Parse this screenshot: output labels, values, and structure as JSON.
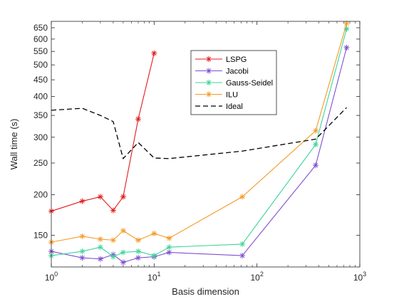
{
  "chart_data": {
    "type": "line",
    "xlabel": "Basis dimension",
    "ylabel": "Wall time (s)",
    "x_scale": "log",
    "y_scale": "log",
    "xlim": [
      1,
      1000
    ],
    "ylim": [
      120,
      680
    ],
    "x_ticks": [
      {
        "value": 1,
        "base": "10",
        "exp": "0"
      },
      {
        "value": 10,
        "base": "10",
        "exp": "1"
      },
      {
        "value": 100,
        "base": "10",
        "exp": "2"
      },
      {
        "value": 1000,
        "base": "10",
        "exp": "3"
      }
    ],
    "y_ticks": [
      {
        "value": 150,
        "label": "150"
      },
      {
        "value": 200,
        "label": "200"
      },
      {
        "value": 250,
        "label": "250"
      },
      {
        "value": 300,
        "label": "300"
      },
      {
        "value": 350,
        "label": "350"
      },
      {
        "value": 400,
        "label": "400"
      },
      {
        "value": 450,
        "label": "450"
      },
      {
        "value": 500,
        "label": "500"
      },
      {
        "value": 550,
        "label": "550"
      },
      {
        "value": 600,
        "label": "600"
      },
      {
        "value": 650,
        "label": "650"
      }
    ],
    "grid": false,
    "legend_position": "top-center",
    "series": [
      {
        "name": "LSPG",
        "color": "#e41a1c",
        "dashed": false,
        "marker": "star",
        "x": [
          1,
          2,
          3,
          4,
          5,
          7,
          10
        ],
        "y": [
          178,
          191,
          197,
          179,
          197,
          341,
          543
        ]
      },
      {
        "name": "Jacobi",
        "color": "#7e4fd1",
        "dashed": false,
        "marker": "star",
        "x": [
          1,
          2,
          3,
          4,
          5,
          7,
          10,
          14,
          72,
          372,
          744
        ],
        "y": [
          134,
          128,
          127,
          131,
          124,
          128,
          129,
          133,
          130,
          246,
          565
        ]
      },
      {
        "name": "Gauss-Seidel",
        "color": "#3dd39b",
        "dashed": false,
        "marker": "star",
        "x": [
          1,
          2,
          3,
          4,
          5,
          7,
          10,
          14,
          72,
          372,
          744
        ],
        "y": [
          130,
          134,
          138,
          129,
          133,
          134,
          130,
          138,
          141,
          285,
          645
        ]
      },
      {
        "name": "ILU",
        "color": "#f39b2a",
        "dashed": false,
        "marker": "star",
        "x": [
          1,
          2,
          3,
          4,
          5,
          7,
          10,
          14,
          72,
          372,
          744
        ],
        "y": [
          143,
          149,
          146,
          145,
          155,
          145,
          152,
          147,
          197,
          314,
          670
        ]
      },
      {
        "name": "Ideal",
        "color": "#000000",
        "dashed": true,
        "marker": "none",
        "x": [
          1,
          2,
          3,
          4,
          5,
          7,
          10,
          14,
          72,
          372,
          744
        ],
        "y": [
          363,
          368,
          350,
          335,
          258,
          289,
          259,
          258,
          272,
          296,
          370
        ]
      }
    ]
  }
}
